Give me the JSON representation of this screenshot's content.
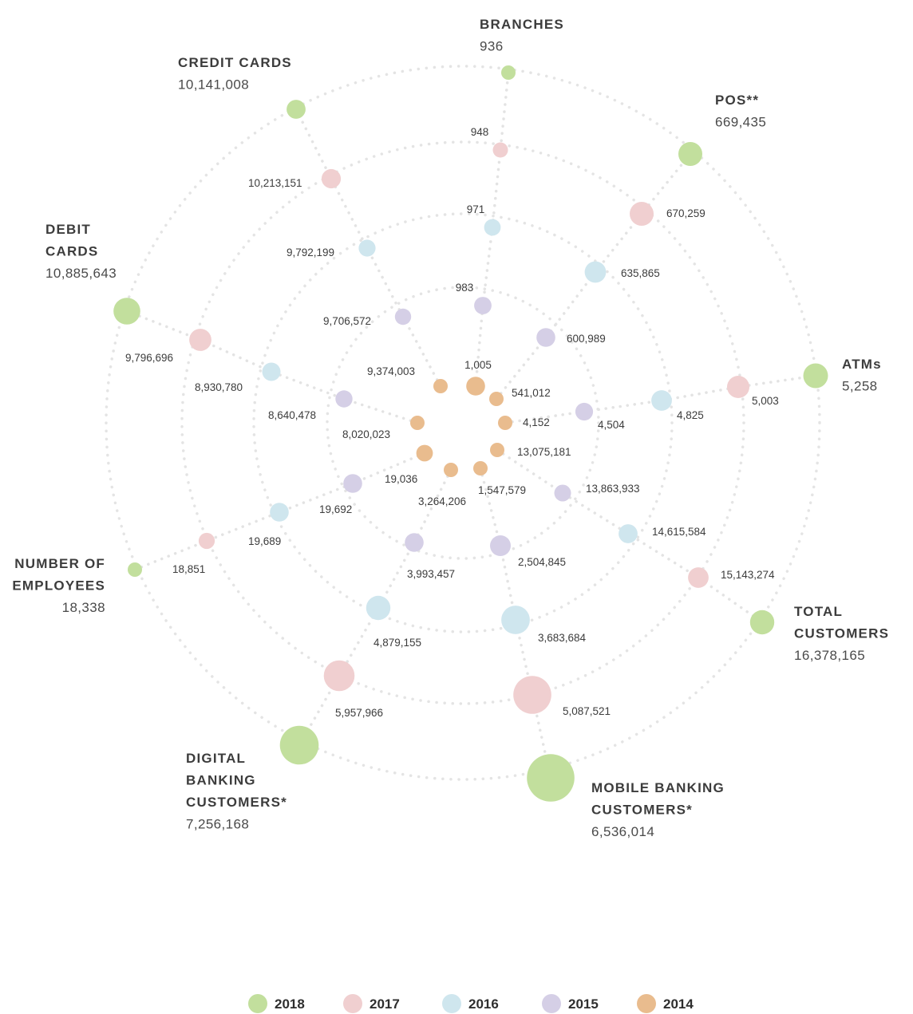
{
  "chart_data": {
    "type": "bubble-radial",
    "colors": {
      "2018": "#c2df9d",
      "2017": "#f0cfd0",
      "2016": "#cfe6ee",
      "2015": "#d5cfe6",
      "2014": "#e9bc8e"
    },
    "legend": [
      "2018",
      "2017",
      "2016",
      "2015",
      "2014"
    ],
    "metrics": [
      {
        "name_lines": [
          "BRANCHES"
        ],
        "value_2018": "936",
        "values": {
          "2018": 936,
          "2017": 948,
          "2016": 971,
          "2015": 983,
          "2014": 1005
        },
        "labels": {
          "2017": "948",
          "2016": "971",
          "2015": "983",
          "2014": "1,005"
        }
      },
      {
        "name_lines": [
          "POS**"
        ],
        "value_2018": "669,435",
        "values": {
          "2018": 669435,
          "2017": 670259,
          "2016": 635865,
          "2015": 600989,
          "2014": 541012
        },
        "labels": {
          "2017": "670,259",
          "2016": "635,865",
          "2015": "600,989",
          "2014": "541,012"
        }
      },
      {
        "name_lines": [
          "ATMs"
        ],
        "value_2018": "5,258",
        "values": {
          "2018": 5258,
          "2017": 5003,
          "2016": 4825,
          "2015": 4504,
          "2014": 4152
        },
        "labels": {
          "2017": "5,003",
          "2016": "4,825",
          "2015": "4,504",
          "2014": "4,152"
        }
      },
      {
        "name_lines": [
          "TOTAL",
          "CUSTOMERS"
        ],
        "value_2018": "16,378,165",
        "values": {
          "2018": 16378165,
          "2017": 15143274,
          "2016": 14615584,
          "2015": 13863933,
          "2014": 13075181
        },
        "labels": {
          "2017": "15,143,274",
          "2016": "14,615,584",
          "2015": "13,863,933",
          "2014": "13,075,181"
        }
      },
      {
        "name_lines": [
          "MOBILE BANKING",
          "CUSTOMERS*"
        ],
        "value_2018": "6,536,014",
        "values": {
          "2018": 6536014,
          "2017": 5087521,
          "2016": 3683684,
          "2015": 2504845,
          "2014": 1547579
        },
        "labels": {
          "2017": "5,087,521",
          "2016": "3,683,684",
          "2015": "2,504,845",
          "2014": "1,547,579"
        }
      },
      {
        "name_lines": [
          "DIGITAL",
          "BANKING",
          "CUSTOMERS*"
        ],
        "value_2018": "7,256,168",
        "values": {
          "2018": 7256168,
          "2017": 5957966,
          "2016": 4879155,
          "2015": 3993457,
          "2014": 3264206
        },
        "labels": {
          "2017": "5,957,966",
          "2016": "4,879,155",
          "2015": "3,993,457",
          "2014": "3,264,206"
        }
      },
      {
        "name_lines": [
          "NUMBER OF",
          "EMPLOYEES"
        ],
        "value_2018": "18,338",
        "values": {
          "2018": 18338,
          "2017": 18851,
          "2016": 19689,
          "2015": 19692,
          "2014": 19036
        },
        "labels": {
          "2017": "18,851",
          "2016": "19,689",
          "2015": "19,692",
          "2014": "19,036"
        }
      },
      {
        "name_lines": [
          "DEBIT",
          "CARDS"
        ],
        "value_2018": "10,885,643",
        "values": {
          "2018": 10885643,
          "2017": 9796696,
          "2016": 8930780,
          "2015": 8640478,
          "2014": 8020023
        },
        "labels": {
          "2017": "9,796,696",
          "2016": "8,930,780",
          "2015": "8,640,478",
          "2014": "8,020,023"
        }
      },
      {
        "name_lines": [
          "CREDIT CARDS"
        ],
        "value_2018": "10,141,008",
        "values": {
          "2018": 10141008,
          "2017": 10213151,
          "2016": 9792199,
          "2015": 9706572,
          "2014": 9374003
        },
        "labels": {
          "2017": "10,213,151",
          "2016": "9,792,199",
          "2015": "9,706,572",
          "2014": "9,374,003"
        }
      }
    ]
  }
}
